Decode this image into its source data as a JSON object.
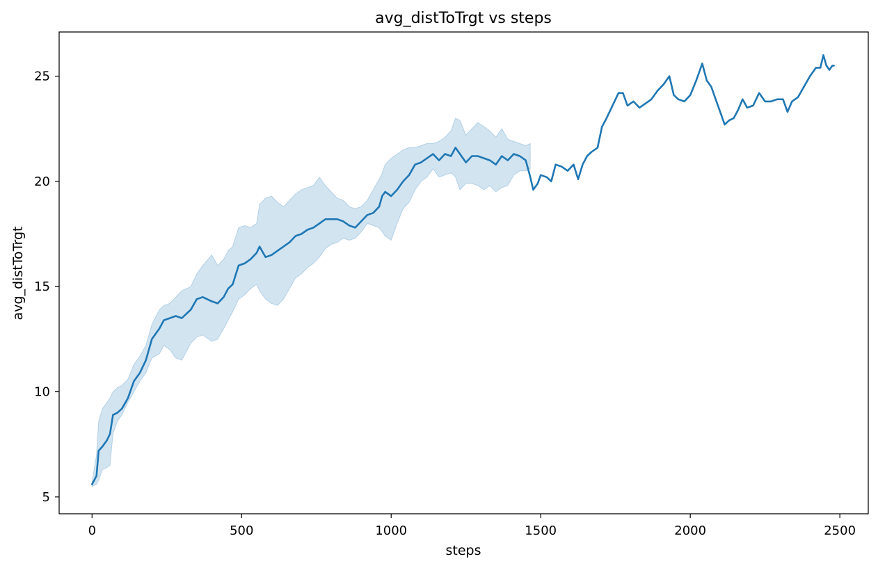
{
  "chart_data": {
    "type": "line",
    "title": "avg_distToTrgt vs steps",
    "xlabel": "steps",
    "ylabel": "avg_distToTrgt",
    "xlim": [
      -110,
      2595
    ],
    "ylim": [
      4.2,
      27.1
    ],
    "grid": false,
    "xticks": [
      0,
      500,
      1000,
      1500,
      2000,
      2500
    ],
    "yticks": [
      5,
      10,
      15,
      20,
      25
    ],
    "series": [
      {
        "color": "#1f77b4",
        "band_color": "#1f77b4",
        "mean": [
          [
            0,
            5.6
          ],
          [
            15,
            6.0
          ],
          [
            22,
            7.2
          ],
          [
            35,
            7.4
          ],
          [
            50,
            7.7
          ],
          [
            60,
            8.0
          ],
          [
            70,
            8.9
          ],
          [
            85,
            9.0
          ],
          [
            100,
            9.2
          ],
          [
            120,
            9.7
          ],
          [
            140,
            10.5
          ],
          [
            160,
            10.9
          ],
          [
            180,
            11.5
          ],
          [
            200,
            12.5
          ],
          [
            225,
            13.0
          ],
          [
            240,
            13.4
          ],
          [
            260,
            13.5
          ],
          [
            280,
            13.6
          ],
          [
            300,
            13.5
          ],
          [
            330,
            13.9
          ],
          [
            350,
            14.4
          ],
          [
            370,
            14.5
          ],
          [
            400,
            14.3
          ],
          [
            420,
            14.2
          ],
          [
            440,
            14.5
          ],
          [
            455,
            14.9
          ],
          [
            470,
            15.1
          ],
          [
            490,
            16.0
          ],
          [
            510,
            16.1
          ],
          [
            530,
            16.3
          ],
          [
            550,
            16.6
          ],
          [
            560,
            16.9
          ],
          [
            580,
            16.4
          ],
          [
            600,
            16.5
          ],
          [
            620,
            16.7
          ],
          [
            640,
            16.9
          ],
          [
            660,
            17.1
          ],
          [
            680,
            17.4
          ],
          [
            700,
            17.5
          ],
          [
            720,
            17.7
          ],
          [
            740,
            17.8
          ],
          [
            760,
            18.0
          ],
          [
            780,
            18.2
          ],
          [
            800,
            18.2
          ],
          [
            820,
            18.2
          ],
          [
            840,
            18.1
          ],
          [
            860,
            17.9
          ],
          [
            880,
            17.8
          ],
          [
            900,
            18.1
          ],
          [
            920,
            18.4
          ],
          [
            940,
            18.5
          ],
          [
            960,
            18.8
          ],
          [
            970,
            19.3
          ],
          [
            980,
            19.5
          ],
          [
            1000,
            19.3
          ],
          [
            1020,
            19.6
          ],
          [
            1040,
            20.0
          ],
          [
            1060,
            20.3
          ],
          [
            1080,
            20.8
          ],
          [
            1100,
            20.9
          ],
          [
            1120,
            21.1
          ],
          [
            1140,
            21.3
          ],
          [
            1160,
            21.0
          ],
          [
            1180,
            21.3
          ],
          [
            1200,
            21.2
          ],
          [
            1215,
            21.6
          ],
          [
            1230,
            21.3
          ],
          [
            1250,
            20.9
          ],
          [
            1270,
            21.2
          ],
          [
            1290,
            21.2
          ],
          [
            1310,
            21.1
          ],
          [
            1330,
            21.0
          ],
          [
            1350,
            20.8
          ],
          [
            1370,
            21.2
          ],
          [
            1390,
            21.0
          ],
          [
            1410,
            21.3
          ],
          [
            1430,
            21.2
          ],
          [
            1450,
            21.0
          ],
          [
            1465,
            20.2
          ],
          [
            1475,
            19.6
          ],
          [
            1490,
            19.9
          ],
          [
            1500,
            20.3
          ],
          [
            1520,
            20.2
          ],
          [
            1535,
            20.0
          ],
          [
            1550,
            20.8
          ],
          [
            1570,
            20.7
          ],
          [
            1590,
            20.5
          ],
          [
            1610,
            20.8
          ],
          [
            1625,
            20.1
          ],
          [
            1640,
            20.8
          ],
          [
            1655,
            21.2
          ],
          [
            1670,
            21.4
          ],
          [
            1690,
            21.6
          ],
          [
            1705,
            22.6
          ],
          [
            1720,
            23.0
          ],
          [
            1740,
            23.6
          ],
          [
            1760,
            24.2
          ],
          [
            1775,
            24.2
          ],
          [
            1790,
            23.6
          ],
          [
            1810,
            23.8
          ],
          [
            1830,
            23.5
          ],
          [
            1850,
            23.7
          ],
          [
            1870,
            23.9
          ],
          [
            1890,
            24.3
          ],
          [
            1910,
            24.6
          ],
          [
            1930,
            25.0
          ],
          [
            1945,
            24.1
          ],
          [
            1960,
            23.9
          ],
          [
            1980,
            23.8
          ],
          [
            2000,
            24.1
          ],
          [
            2020,
            24.8
          ],
          [
            2040,
            25.6
          ],
          [
            2055,
            24.8
          ],
          [
            2070,
            24.5
          ],
          [
            2085,
            23.9
          ],
          [
            2100,
            23.3
          ],
          [
            2115,
            22.7
          ],
          [
            2130,
            22.9
          ],
          [
            2145,
            23.0
          ],
          [
            2160,
            23.4
          ],
          [
            2175,
            23.9
          ],
          [
            2190,
            23.5
          ],
          [
            2210,
            23.6
          ],
          [
            2230,
            24.2
          ],
          [
            2250,
            23.8
          ],
          [
            2270,
            23.8
          ],
          [
            2290,
            23.9
          ],
          [
            2310,
            23.9
          ],
          [
            2325,
            23.3
          ],
          [
            2340,
            23.8
          ],
          [
            2360,
            24.0
          ],
          [
            2380,
            24.5
          ],
          [
            2400,
            25.0
          ],
          [
            2420,
            25.4
          ],
          [
            2435,
            25.4
          ],
          [
            2445,
            26.0
          ],
          [
            2455,
            25.5
          ],
          [
            2465,
            25.3
          ],
          [
            2475,
            25.5
          ],
          [
            2480,
            25.5
          ]
        ],
        "ci_lower": [
          [
            0,
            5.5
          ],
          [
            15,
            5.6
          ],
          [
            22,
            5.8
          ],
          [
            35,
            6.3
          ],
          [
            50,
            6.4
          ],
          [
            60,
            6.5
          ],
          [
            70,
            8.0
          ],
          [
            85,
            8.6
          ],
          [
            100,
            8.9
          ],
          [
            120,
            9.5
          ],
          [
            140,
            10.0
          ],
          [
            160,
            10.5
          ],
          [
            180,
            10.9
          ],
          [
            200,
            11.6
          ],
          [
            225,
            11.8
          ],
          [
            240,
            12.2
          ],
          [
            260,
            12.0
          ],
          [
            280,
            11.6
          ],
          [
            300,
            11.5
          ],
          [
            330,
            12.3
          ],
          [
            350,
            12.6
          ],
          [
            370,
            12.7
          ],
          [
            400,
            12.4
          ],
          [
            420,
            12.5
          ],
          [
            440,
            13.0
          ],
          [
            455,
            13.4
          ],
          [
            470,
            13.8
          ],
          [
            490,
            14.4
          ],
          [
            510,
            14.6
          ],
          [
            530,
            14.9
          ],
          [
            550,
            15.1
          ],
          [
            560,
            14.8
          ],
          [
            580,
            14.4
          ],
          [
            600,
            14.2
          ],
          [
            620,
            14.1
          ],
          [
            640,
            14.4
          ],
          [
            660,
            14.9
          ],
          [
            680,
            15.4
          ],
          [
            700,
            15.6
          ],
          [
            720,
            15.9
          ],
          [
            740,
            16.1
          ],
          [
            760,
            16.4
          ],
          [
            780,
            16.8
          ],
          [
            800,
            17.0
          ],
          [
            820,
            17.1
          ],
          [
            840,
            17.3
          ],
          [
            860,
            17.2
          ],
          [
            880,
            17.3
          ],
          [
            900,
            17.6
          ],
          [
            920,
            18.0
          ],
          [
            940,
            17.9
          ],
          [
            960,
            17.8
          ],
          [
            970,
            17.6
          ],
          [
            980,
            17.4
          ],
          [
            1000,
            17.2
          ],
          [
            1020,
            18.0
          ],
          [
            1040,
            18.7
          ],
          [
            1060,
            19.0
          ],
          [
            1080,
            19.6
          ],
          [
            1100,
            20.0
          ],
          [
            1120,
            20.2
          ],
          [
            1140,
            20.6
          ],
          [
            1160,
            20.2
          ],
          [
            1180,
            20.3
          ],
          [
            1200,
            20.4
          ],
          [
            1215,
            20.2
          ],
          [
            1230,
            19.6
          ],
          [
            1250,
            19.9
          ],
          [
            1270,
            19.9
          ],
          [
            1290,
            19.8
          ],
          [
            1310,
            19.6
          ],
          [
            1330,
            19.8
          ],
          [
            1350,
            19.5
          ],
          [
            1370,
            19.7
          ],
          [
            1390,
            19.8
          ],
          [
            1410,
            20.3
          ],
          [
            1430,
            20.5
          ],
          [
            1450,
            20.5
          ],
          [
            1465,
            20.6
          ]
        ],
        "ci_upper": [
          [
            0,
            5.7
          ],
          [
            15,
            7.0
          ],
          [
            22,
            8.6
          ],
          [
            35,
            9.2
          ],
          [
            50,
            9.5
          ],
          [
            60,
            9.7
          ],
          [
            70,
            10.0
          ],
          [
            85,
            10.2
          ],
          [
            100,
            10.3
          ],
          [
            120,
            10.6
          ],
          [
            140,
            11.3
          ],
          [
            160,
            11.7
          ],
          [
            180,
            12.2
          ],
          [
            200,
            13.2
          ],
          [
            225,
            13.9
          ],
          [
            240,
            14.1
          ],
          [
            260,
            14.2
          ],
          [
            280,
            14.5
          ],
          [
            300,
            14.8
          ],
          [
            330,
            15.0
          ],
          [
            350,
            15.6
          ],
          [
            370,
            16.0
          ],
          [
            400,
            16.5
          ],
          [
            420,
            16.0
          ],
          [
            440,
            16.3
          ],
          [
            455,
            16.7
          ],
          [
            470,
            16.9
          ],
          [
            490,
            17.8
          ],
          [
            510,
            17.9
          ],
          [
            530,
            17.8
          ],
          [
            550,
            18.0
          ],
          [
            560,
            18.9
          ],
          [
            580,
            19.2
          ],
          [
            600,
            19.3
          ],
          [
            620,
            19.0
          ],
          [
            640,
            18.8
          ],
          [
            660,
            19.1
          ],
          [
            680,
            19.4
          ],
          [
            700,
            19.6
          ],
          [
            720,
            19.7
          ],
          [
            740,
            19.8
          ],
          [
            760,
            20.2
          ],
          [
            780,
            19.8
          ],
          [
            800,
            19.5
          ],
          [
            820,
            19.2
          ],
          [
            840,
            19.1
          ],
          [
            860,
            18.8
          ],
          [
            880,
            18.7
          ],
          [
            900,
            18.8
          ],
          [
            920,
            19.1
          ],
          [
            940,
            19.6
          ],
          [
            960,
            20.1
          ],
          [
            970,
            20.4
          ],
          [
            980,
            20.8
          ],
          [
            1000,
            21.1
          ],
          [
            1020,
            21.3
          ],
          [
            1040,
            21.5
          ],
          [
            1060,
            21.6
          ],
          [
            1080,
            21.6
          ],
          [
            1100,
            21.7
          ],
          [
            1120,
            21.8
          ],
          [
            1140,
            21.8
          ],
          [
            1160,
            21.9
          ],
          [
            1180,
            22.1
          ],
          [
            1200,
            22.4
          ],
          [
            1215,
            23.0
          ],
          [
            1230,
            22.9
          ],
          [
            1250,
            22.2
          ],
          [
            1270,
            22.5
          ],
          [
            1290,
            22.8
          ],
          [
            1310,
            22.6
          ],
          [
            1330,
            22.4
          ],
          [
            1350,
            22.1
          ],
          [
            1370,
            22.5
          ],
          [
            1390,
            22.0
          ],
          [
            1410,
            21.9
          ],
          [
            1430,
            21.8
          ],
          [
            1450,
            21.7
          ],
          [
            1465,
            21.8
          ]
        ]
      }
    ]
  }
}
